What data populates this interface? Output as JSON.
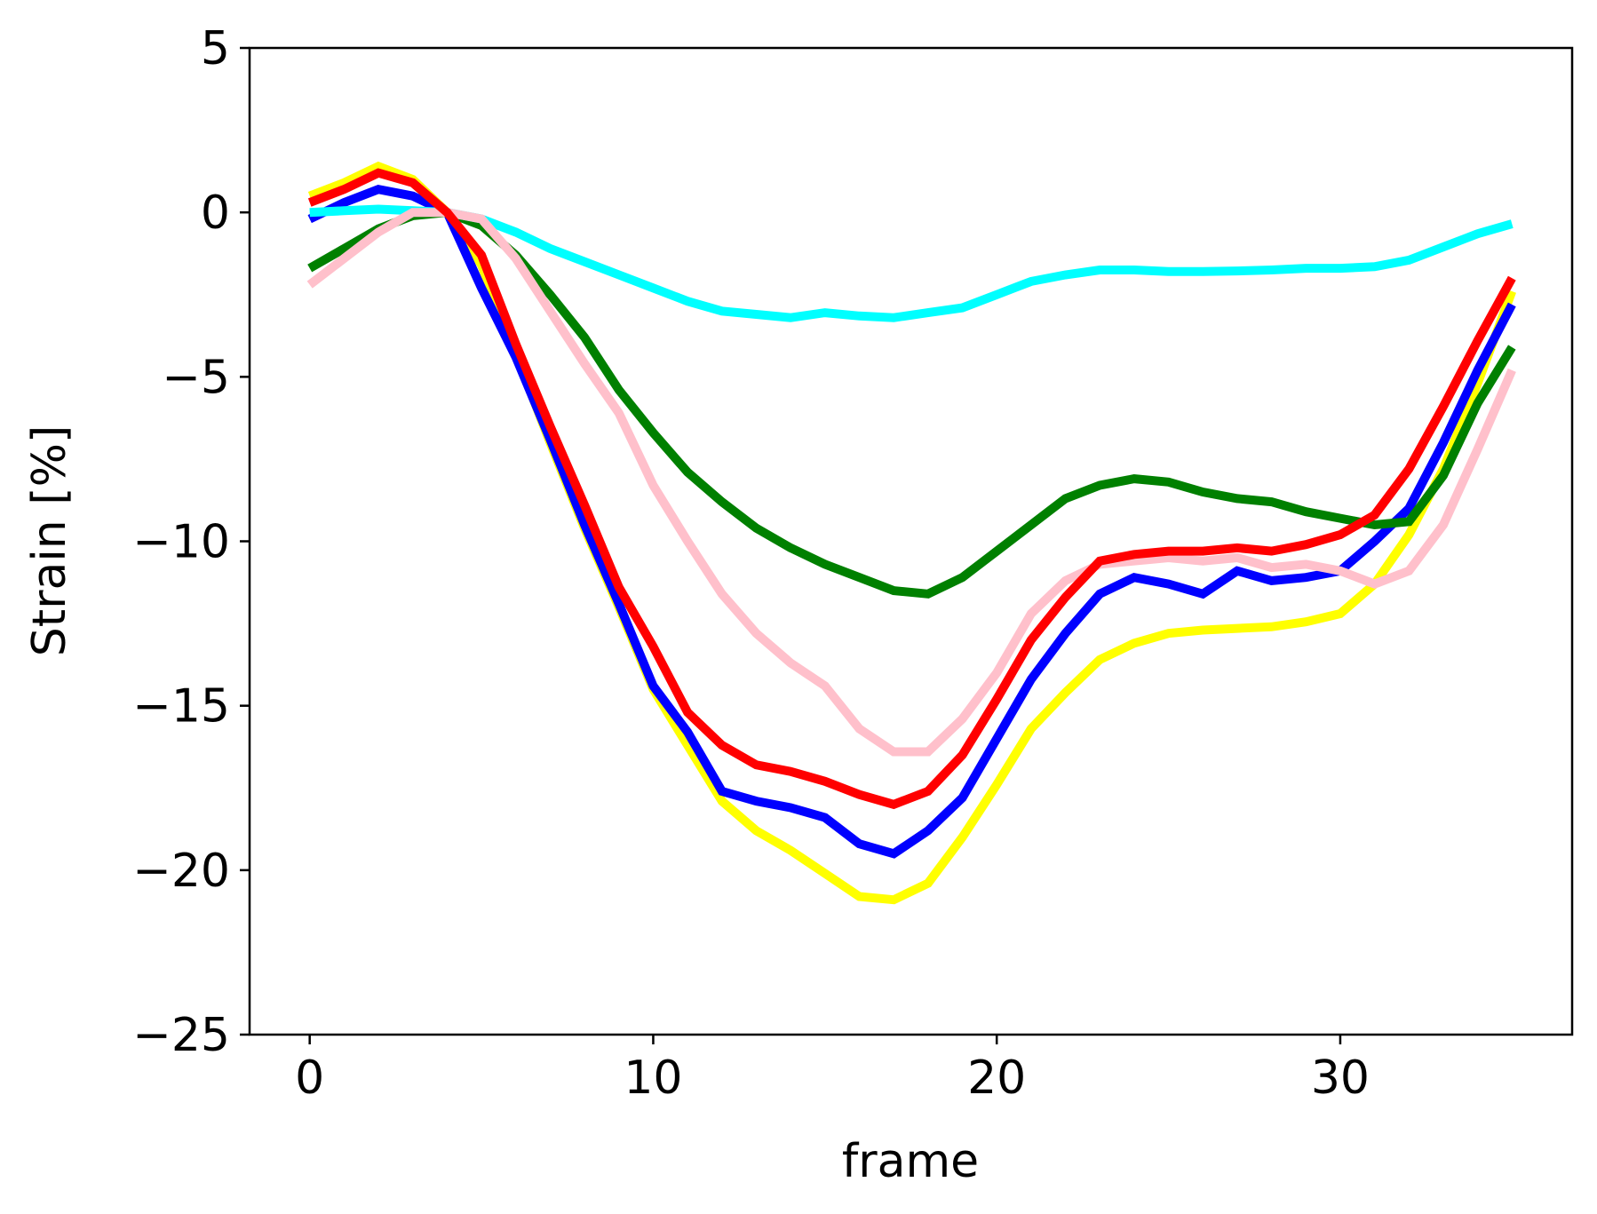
{
  "chart_data": {
    "type": "line",
    "title": "",
    "xlabel": "frame",
    "ylabel": "Strain [%]",
    "xlim": [
      -1.75,
      36.75
    ],
    "ylim": [
      -25,
      5
    ],
    "xticks": [
      0,
      10,
      20,
      30
    ],
    "yticks": [
      5,
      0,
      -5,
      -10,
      -15,
      -20,
      -25
    ],
    "xtick_labels": [
      "0",
      "10",
      "20",
      "30"
    ],
    "ytick_labels": [
      "5",
      "0",
      "−5",
      "−10",
      "−15",
      "−20",
      "−25"
    ],
    "grid": false,
    "legend": "none",
    "x": [
      0,
      1,
      2,
      3,
      4,
      5,
      6,
      7,
      8,
      9,
      10,
      11,
      12,
      13,
      14,
      15,
      16,
      17,
      18,
      19,
      20,
      21,
      22,
      23,
      24,
      25,
      26,
      27,
      28,
      29,
      30,
      31,
      32,
      33,
      34,
      35
    ],
    "series": [
      {
        "color": "#ffff00",
        "values": [
          0.5,
          0.9,
          1.4,
          1.0,
          0.0,
          -1.6,
          -4.3,
          -7.0,
          -9.6,
          -12.0,
          -14.5,
          -16.2,
          -17.9,
          -18.8,
          -19.4,
          -20.1,
          -20.8,
          -20.9,
          -20.4,
          -19.0,
          -17.4,
          -15.7,
          -14.6,
          -13.6,
          -13.1,
          -12.8,
          -12.7,
          -12.65,
          -12.6,
          -12.45,
          -12.2,
          -11.3,
          -9.8,
          -7.8,
          -5.2,
          -2.4
        ]
      },
      {
        "color": "#0000ff",
        "values": [
          -0.2,
          0.3,
          0.7,
          0.5,
          0.0,
          -2.3,
          -4.4,
          -6.9,
          -9.5,
          -11.9,
          -14.4,
          -15.8,
          -17.6,
          -17.9,
          -18.1,
          -18.4,
          -19.2,
          -19.5,
          -18.8,
          -17.8,
          -16.0,
          -14.2,
          -12.8,
          -11.6,
          -11.1,
          -11.3,
          -11.6,
          -10.9,
          -11.2,
          -11.1,
          -10.9,
          -10.0,
          -9.0,
          -7.0,
          -4.8,
          -2.8
        ]
      },
      {
        "color": "#008000",
        "values": [
          -1.7,
          -1.1,
          -0.5,
          -0.1,
          0.0,
          -0.4,
          -1.3,
          -2.5,
          -3.8,
          -5.4,
          -6.7,
          -7.9,
          -8.8,
          -9.6,
          -10.2,
          -10.7,
          -11.1,
          -11.5,
          -11.6,
          -11.1,
          -10.3,
          -9.5,
          -8.7,
          -8.3,
          -8.1,
          -8.2,
          -8.5,
          -8.7,
          -8.8,
          -9.1,
          -9.3,
          -9.5,
          -9.4,
          -8.0,
          -5.8,
          -4.1
        ]
      },
      {
        "color": "#00ffff",
        "values": [
          0.0,
          0.05,
          0.1,
          0.05,
          0.0,
          -0.2,
          -0.6,
          -1.1,
          -1.5,
          -1.9,
          -2.3,
          -2.7,
          -3.0,
          -3.1,
          -3.2,
          -3.05,
          -3.15,
          -3.2,
          -3.05,
          -2.9,
          -2.5,
          -2.1,
          -1.9,
          -1.75,
          -1.75,
          -1.8,
          -1.8,
          -1.78,
          -1.75,
          -1.7,
          -1.7,
          -1.65,
          -1.45,
          -1.05,
          -0.65,
          -0.35
        ]
      },
      {
        "color": "#ffc0cb",
        "values": [
          -2.2,
          -1.4,
          -0.6,
          0.0,
          0.0,
          -0.2,
          -1.4,
          -3.0,
          -4.6,
          -6.1,
          -8.3,
          -10.0,
          -11.6,
          -12.8,
          -13.7,
          -14.4,
          -15.7,
          -16.4,
          -16.4,
          -15.4,
          -14.0,
          -12.2,
          -11.2,
          -10.7,
          -10.6,
          -10.5,
          -10.6,
          -10.5,
          -10.8,
          -10.7,
          -10.9,
          -11.3,
          -10.9,
          -9.5,
          -7.2,
          -4.8
        ]
      },
      {
        "color": "#ff0000",
        "values": [
          0.3,
          0.7,
          1.2,
          0.9,
          0.0,
          -1.3,
          -4.0,
          -6.5,
          -8.9,
          -11.4,
          -13.2,
          -15.2,
          -16.2,
          -16.8,
          -17.0,
          -17.3,
          -17.7,
          -18.0,
          -17.6,
          -16.5,
          -14.8,
          -13.0,
          -11.7,
          -10.6,
          -10.4,
          -10.3,
          -10.3,
          -10.2,
          -10.3,
          -10.1,
          -9.8,
          -9.2,
          -7.8,
          -5.9,
          -3.9,
          -2.0
        ]
      }
    ]
  }
}
